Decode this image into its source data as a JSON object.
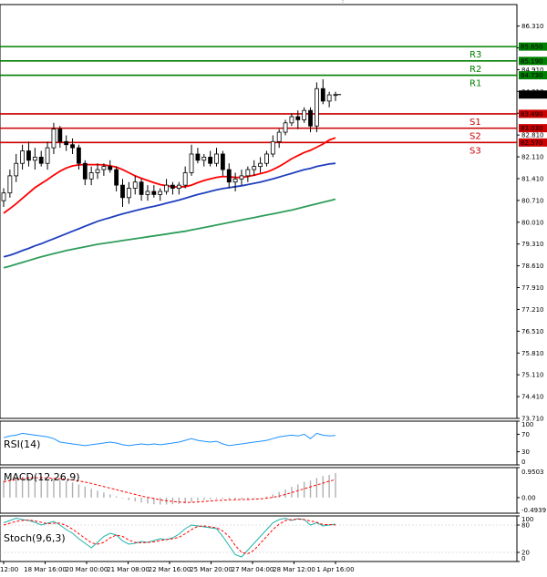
{
  "chart_data": {
    "type": "candlestick",
    "price_axis": {
      "range": [
        73.71,
        87.0
      ],
      "ticks": [
        "86.310",
        "85.610",
        "84.910",
        "84.210",
        "83.510",
        "82.810",
        "82.110",
        "81.410",
        "80.710",
        "80.010",
        "79.310",
        "78.610",
        "77.910",
        "77.210",
        "76.510",
        "75.810",
        "75.110",
        "74.410",
        "73.710"
      ]
    },
    "time_axis": {
      "labels": [
        "12:00",
        "18 Mar 16:00",
        "20 Mar 00:00",
        "21 Mar 08:00",
        "22 Mar 16:00",
        "25 Mar 20:00",
        "27 Mar 04:00",
        "28 Mar 12:00",
        "1 Apr 16:00"
      ]
    },
    "current_price": {
      "label": "84.110",
      "value": 84.11
    },
    "levels": [
      {
        "name": "R3",
        "value": 85.65,
        "label": "85.650",
        "color": "#008000"
      },
      {
        "name": "R2",
        "value": 85.19,
        "label": "85.190",
        "color": "#008000"
      },
      {
        "name": "R1",
        "value": 84.73,
        "label": "84.730",
        "color": "#008000"
      },
      {
        "name": "S1",
        "value": 83.49,
        "label": "83.490",
        "color": "#cc0000"
      },
      {
        "name": "S2",
        "value": 83.03,
        "label": "83.030",
        "color": "#cc0000"
      },
      {
        "name": "S3",
        "value": 82.57,
        "label": "82.570",
        "color": "#cc0000"
      }
    ],
    "candles": [
      {
        "o": 80.7,
        "h": 81.1,
        "l": 80.5,
        "c": 80.95
      },
      {
        "o": 80.95,
        "h": 81.7,
        "l": 80.8,
        "c": 81.5
      },
      {
        "o": 81.5,
        "h": 82.2,
        "l": 81.3,
        "c": 81.9
      },
      {
        "o": 81.9,
        "h": 82.5,
        "l": 81.7,
        "c": 82.3
      },
      {
        "o": 82.3,
        "h": 82.6,
        "l": 81.8,
        "c": 82.0
      },
      {
        "o": 82.0,
        "h": 82.4,
        "l": 81.7,
        "c": 82.1
      },
      {
        "o": 82.1,
        "h": 82.3,
        "l": 81.8,
        "c": 81.9
      },
      {
        "o": 81.9,
        "h": 82.6,
        "l": 81.7,
        "c": 82.4
      },
      {
        "o": 82.4,
        "h": 83.2,
        "l": 82.2,
        "c": 83.0
      },
      {
        "o": 83.0,
        "h": 83.1,
        "l": 82.4,
        "c": 82.6
      },
      {
        "o": 82.6,
        "h": 82.8,
        "l": 82.3,
        "c": 82.5
      },
      {
        "o": 82.5,
        "h": 82.7,
        "l": 82.2,
        "c": 82.4
      },
      {
        "o": 82.4,
        "h": 82.5,
        "l": 81.7,
        "c": 81.9
      },
      {
        "o": 81.9,
        "h": 82.0,
        "l": 81.2,
        "c": 81.4
      },
      {
        "o": 81.4,
        "h": 81.8,
        "l": 81.2,
        "c": 81.6
      },
      {
        "o": 81.6,
        "h": 81.9,
        "l": 81.4,
        "c": 81.7
      },
      {
        "o": 81.7,
        "h": 81.9,
        "l": 81.5,
        "c": 81.8
      },
      {
        "o": 81.8,
        "h": 82.0,
        "l": 81.6,
        "c": 81.7
      },
      {
        "o": 81.7,
        "h": 81.8,
        "l": 81.0,
        "c": 81.2
      },
      {
        "o": 81.2,
        "h": 81.4,
        "l": 80.5,
        "c": 80.8
      },
      {
        "o": 80.8,
        "h": 81.3,
        "l": 80.6,
        "c": 81.1
      },
      {
        "o": 81.1,
        "h": 81.5,
        "l": 80.9,
        "c": 81.3
      },
      {
        "o": 81.3,
        "h": 81.4,
        "l": 80.7,
        "c": 80.9
      },
      {
        "o": 80.9,
        "h": 81.2,
        "l": 80.7,
        "c": 81.0
      },
      {
        "o": 81.0,
        "h": 81.2,
        "l": 80.8,
        "c": 80.9
      },
      {
        "o": 80.9,
        "h": 81.1,
        "l": 80.7,
        "c": 81.0
      },
      {
        "o": 81.0,
        "h": 81.4,
        "l": 80.9,
        "c": 81.2
      },
      {
        "o": 81.2,
        "h": 81.3,
        "l": 80.9,
        "c": 81.1
      },
      {
        "o": 81.1,
        "h": 81.3,
        "l": 80.9,
        "c": 81.2
      },
      {
        "o": 81.2,
        "h": 81.8,
        "l": 81.1,
        "c": 81.6
      },
      {
        "o": 81.6,
        "h": 82.5,
        "l": 81.5,
        "c": 82.2
      },
      {
        "o": 82.2,
        "h": 82.4,
        "l": 81.9,
        "c": 82.0
      },
      {
        "o": 82.0,
        "h": 82.2,
        "l": 81.8,
        "c": 82.1
      },
      {
        "o": 82.1,
        "h": 82.3,
        "l": 81.8,
        "c": 81.9
      },
      {
        "o": 81.9,
        "h": 82.4,
        "l": 81.8,
        "c": 82.2
      },
      {
        "o": 82.2,
        "h": 82.3,
        "l": 81.5,
        "c": 81.7
      },
      {
        "o": 81.7,
        "h": 81.9,
        "l": 81.1,
        "c": 81.3
      },
      {
        "o": 81.3,
        "h": 81.6,
        "l": 81.0,
        "c": 81.4
      },
      {
        "o": 81.4,
        "h": 81.7,
        "l": 81.2,
        "c": 81.5
      },
      {
        "o": 81.5,
        "h": 81.8,
        "l": 81.3,
        "c": 81.7
      },
      {
        "o": 81.7,
        "h": 82.0,
        "l": 81.5,
        "c": 81.8
      },
      {
        "o": 81.8,
        "h": 82.1,
        "l": 81.6,
        "c": 81.9
      },
      {
        "o": 81.9,
        "h": 82.3,
        "l": 81.8,
        "c": 82.2
      },
      {
        "o": 82.2,
        "h": 82.8,
        "l": 82.1,
        "c": 82.6
      },
      {
        "o": 82.6,
        "h": 83.0,
        "l": 82.4,
        "c": 82.9
      },
      {
        "o": 82.9,
        "h": 83.3,
        "l": 82.8,
        "c": 83.2
      },
      {
        "o": 83.2,
        "h": 83.5,
        "l": 83.1,
        "c": 83.4
      },
      {
        "o": 83.4,
        "h": 83.6,
        "l": 83.0,
        "c": 83.3
      },
      {
        "o": 83.3,
        "h": 83.7,
        "l": 83.2,
        "c": 83.6
      },
      {
        "o": 83.6,
        "h": 83.7,
        "l": 82.9,
        "c": 83.1
      },
      {
        "o": 83.1,
        "h": 84.5,
        "l": 82.9,
        "c": 84.3
      },
      {
        "o": 84.3,
        "h": 84.6,
        "l": 83.8,
        "c": 83.9
      },
      {
        "o": 83.9,
        "h": 84.2,
        "l": 83.7,
        "c": 84.1
      },
      {
        "o": 84.1,
        "h": 84.2,
        "l": 83.9,
        "c": 84.11
      }
    ],
    "moving_averages": [
      {
        "color": "#ff0000",
        "values": [
          80.3,
          80.45,
          80.6,
          80.78,
          80.95,
          81.12,
          81.25,
          81.38,
          81.52,
          81.65,
          81.75,
          81.82,
          81.85,
          81.86,
          81.86,
          81.86,
          81.85,
          81.82,
          81.78,
          81.7,
          81.6,
          81.5,
          81.42,
          81.35,
          81.28,
          81.22,
          81.18,
          81.15,
          81.14,
          81.15,
          81.2,
          81.28,
          81.35,
          81.4,
          81.45,
          81.48,
          81.47,
          81.45,
          81.45,
          81.48,
          81.52,
          81.57,
          81.62,
          81.7,
          81.8,
          81.92,
          82.05,
          82.15,
          82.25,
          82.32,
          82.42,
          82.52,
          82.65,
          82.72
        ]
      },
      {
        "color": "#1f3fbf",
        "values": [
          78.9,
          78.95,
          79.02,
          79.1,
          79.17,
          79.25,
          79.32,
          79.4,
          79.48,
          79.56,
          79.64,
          79.72,
          79.8,
          79.88,
          79.96,
          80.04,
          80.1,
          80.16,
          80.22,
          80.28,
          80.33,
          80.38,
          80.43,
          80.48,
          80.52,
          80.57,
          80.62,
          80.67,
          80.72,
          80.78,
          80.84,
          80.9,
          80.95,
          81.0,
          81.05,
          81.09,
          81.12,
          81.15,
          81.18,
          81.22,
          81.26,
          81.3,
          81.35,
          81.4,
          81.46,
          81.52,
          81.58,
          81.64,
          81.7,
          81.74,
          81.8,
          81.84,
          81.88,
          81.9
        ]
      },
      {
        "color": "#2e9d5a",
        "values": [
          78.55,
          78.6,
          78.66,
          78.72,
          78.78,
          78.84,
          78.9,
          78.95,
          79.0,
          79.05,
          79.1,
          79.14,
          79.18,
          79.22,
          79.26,
          79.3,
          79.33,
          79.36,
          79.39,
          79.42,
          79.45,
          79.48,
          79.51,
          79.54,
          79.57,
          79.6,
          79.63,
          79.66,
          79.69,
          79.72,
          79.76,
          79.8,
          79.84,
          79.88,
          79.92,
          79.96,
          80.0,
          80.04,
          80.08,
          80.12,
          80.16,
          80.2,
          80.24,
          80.28,
          80.32,
          80.36,
          80.4,
          80.45,
          80.5,
          80.55,
          80.6,
          80.65,
          80.7,
          80.75
        ]
      }
    ],
    "rsi": {
      "label": "RSI(14)",
      "ticks": [
        "100",
        "70",
        "30",
        "0"
      ],
      "range": [
        0,
        100
      ],
      "values": [
        62,
        66,
        68,
        72,
        70,
        68,
        66,
        64,
        60,
        52,
        50,
        48,
        46,
        44,
        46,
        48,
        50,
        52,
        50,
        46,
        44,
        46,
        48,
        46,
        48,
        46,
        48,
        50,
        52,
        56,
        60,
        56,
        54,
        52,
        54,
        48,
        44,
        46,
        48,
        50,
        52,
        54,
        56,
        60,
        64,
        66,
        68,
        66,
        70,
        60,
        72,
        68,
        66,
        67
      ]
    },
    "macd": {
      "label": "MACD(12,26,9)",
      "ticks": [
        "0.9503",
        "0.00",
        "-0.4939"
      ],
      "range": [
        -0.4939,
        0.9503
      ],
      "histogram": [
        0.55,
        0.6,
        0.64,
        0.66,
        0.66,
        0.64,
        0.62,
        0.58,
        0.56,
        0.55,
        0.52,
        0.48,
        0.42,
        0.35,
        0.28,
        0.22,
        0.16,
        0.1,
        0.04,
        -0.02,
        -0.08,
        -0.12,
        -0.16,
        -0.19,
        -0.21,
        -0.22,
        -0.22,
        -0.21,
        -0.2,
        -0.18,
        -0.14,
        -0.1,
        -0.07,
        -0.05,
        -0.03,
        -0.03,
        -0.04,
        -0.05,
        -0.05,
        -0.04,
        -0.02,
        0.0,
        0.04,
        0.1,
        0.18,
        0.26,
        0.34,
        0.42,
        0.5,
        0.54,
        0.62,
        0.68,
        0.72,
        0.78
      ],
      "signal": [
        0.5,
        0.54,
        0.57,
        0.6,
        0.62,
        0.63,
        0.63,
        0.62,
        0.61,
        0.6,
        0.58,
        0.56,
        0.53,
        0.49,
        0.45,
        0.4,
        0.35,
        0.3,
        0.25,
        0.2,
        0.15,
        0.1,
        0.05,
        0.01,
        -0.03,
        -0.07,
        -0.1,
        -0.12,
        -0.14,
        -0.15,
        -0.15,
        -0.14,
        -0.12,
        -0.11,
        -0.09,
        -0.08,
        -0.07,
        -0.07,
        -0.06,
        -0.06,
        -0.05,
        -0.04,
        -0.02,
        0.01,
        0.05,
        0.1,
        0.16,
        0.22,
        0.28,
        0.34,
        0.4,
        0.46,
        0.52,
        0.57
      ]
    },
    "stoch": {
      "label": "Stoch(9,6,3)",
      "ticks": [
        "100",
        "80",
        "20",
        "0"
      ],
      "range": [
        0,
        100
      ],
      "k": [
        85,
        90,
        95,
        92,
        90,
        86,
        80,
        84,
        88,
        80,
        70,
        62,
        50,
        40,
        30,
        42,
        55,
        62,
        58,
        45,
        38,
        40,
        44,
        42,
        46,
        50,
        48,
        52,
        60,
        72,
        80,
        78,
        76,
        74,
        72,
        55,
        35,
        15,
        10,
        25,
        40,
        55,
        70,
        85,
        92,
        95,
        90,
        94,
        92,
        80,
        85,
        78,
        80,
        82
      ],
      "d": [
        80,
        84,
        88,
        90,
        91,
        89,
        86,
        83,
        84,
        84,
        79,
        71,
        61,
        51,
        41,
        38,
        42,
        52,
        58,
        55,
        47,
        42,
        41,
        42,
        43,
        46,
        48,
        50,
        53,
        61,
        70,
        77,
        78,
        76,
        74,
        67,
        55,
        35,
        20,
        17,
        25,
        40,
        55,
        70,
        82,
        90,
        92,
        93,
        92,
        89,
        86,
        81,
        81,
        80
      ]
    }
  }
}
